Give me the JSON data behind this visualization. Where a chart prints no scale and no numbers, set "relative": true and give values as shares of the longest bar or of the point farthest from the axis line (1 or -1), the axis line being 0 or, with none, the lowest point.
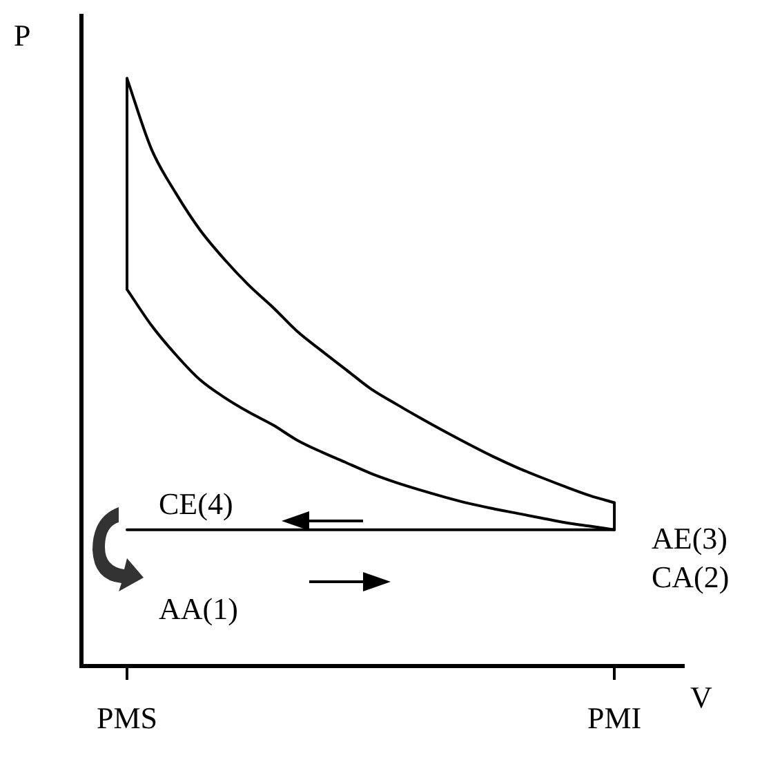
{
  "chart_data": {
    "type": "line",
    "relative": true,
    "xlabel": "V",
    "ylabel": "P",
    "categories": [
      "PMS",
      null,
      null,
      null,
      null,
      null,
      null,
      null,
      null,
      null,
      null,
      null,
      null,
      null,
      null,
      null,
      null,
      null,
      null,
      null,
      "PMI"
    ],
    "series": [
      {
        "color": "#000000",
        "values": [
          1.0,
          0.88,
          0.805,
          0.742,
          0.692,
          0.648,
          0.61,
          0.569,
          0.536,
          0.504,
          0.472,
          0.447,
          0.423,
          0.4,
          0.378,
          0.357,
          0.338,
          0.321,
          0.305,
          0.29,
          0.278
        ]
      },
      {
        "color": "#000000",
        "values": [
          0.641,
          0.58,
          0.53,
          0.487,
          0.457,
          0.432,
          0.41,
          0.384,
          0.364,
          0.346,
          0.328,
          0.313,
          0.3,
          0.288,
          0.277,
          0.268,
          0.26,
          0.252,
          0.244,
          0.238,
          0.232
        ]
      },
      {
        "color": "#000000",
        "values": [
          0.232,
          0.232,
          0.232,
          0.232,
          0.232,
          0.232,
          0.232,
          0.232,
          0.232,
          0.232,
          0.232,
          0.232,
          0.232,
          0.232,
          0.232,
          0.232,
          0.232,
          0.232,
          0.232,
          0.232,
          0.232
        ]
      },
      {
        "color": "#000000",
        "x": [
          "PMS",
          "PMS"
        ],
        "values": [
          0.641,
          1.0
        ]
      },
      {
        "color": "#000000",
        "x": [
          "PMI",
          "PMI"
        ],
        "values": [
          0.232,
          0.278
        ]
      }
    ],
    "annotations": [
      "CE(4)",
      "AA(1)",
      "AE(3)",
      "CA(2)"
    ],
    "legend": false,
    "marker": "none",
    "line_style": "solid"
  }
}
